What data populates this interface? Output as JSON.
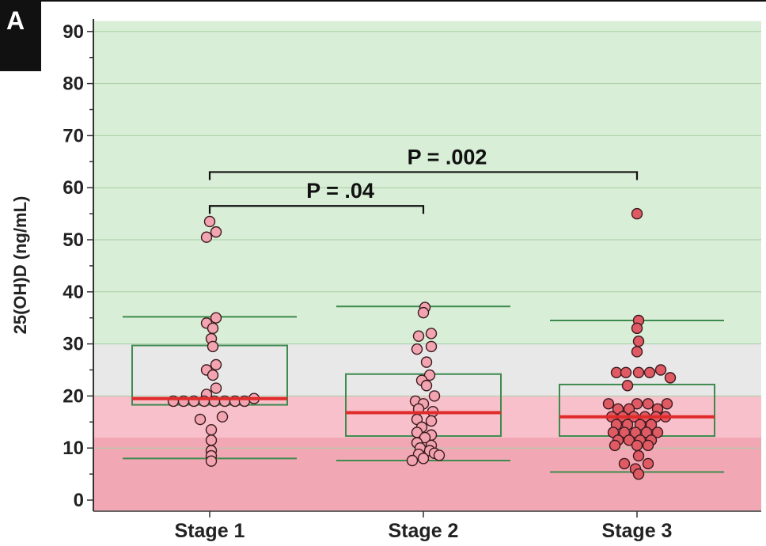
{
  "panel_label": "A",
  "chart_data": {
    "type": "box-scatter",
    "title": "",
    "xlabel": "",
    "ylabel": "25(OH)D (ng/mL)",
    "ylim": [
      -2,
      92
    ],
    "yticks": [
      0,
      10,
      20,
      30,
      40,
      50,
      60,
      70,
      80,
      90
    ],
    "categories": [
      "Stage 1",
      "Stage 2",
      "Stage 3"
    ],
    "background_bands": [
      {
        "from": -2,
        "to": 12,
        "color": "#f2a8b4"
      },
      {
        "from": 12,
        "to": 20,
        "color": "#f7c0ca"
      },
      {
        "from": 20,
        "to": 30,
        "color": "#e8e8e8"
      },
      {
        "from": 30,
        "to": 92,
        "color": "#d8eed6"
      }
    ],
    "series": [
      {
        "category": "Stage 1",
        "marker_color": "#f2a4b0",
        "median": 19.5,
        "q1": 18.3,
        "q3": 29.7,
        "whisker_low": 8,
        "whisker_high": 35.2,
        "points": [
          {
            "v": 53.5,
            "dx": 0
          },
          {
            "v": 51.5,
            "dx": 8
          },
          {
            "v": 50.5,
            "dx": -4
          },
          {
            "v": 35,
            "dx": 8
          },
          {
            "v": 34,
            "dx": -4
          },
          {
            "v": 33,
            "dx": 4
          },
          {
            "v": 31,
            "dx": 2
          },
          {
            "v": 29.5,
            "dx": 4
          },
          {
            "v": 26,
            "dx": 8
          },
          {
            "v": 25,
            "dx": -4
          },
          {
            "v": 24,
            "dx": 4
          },
          {
            "v": 21.5,
            "dx": 8
          },
          {
            "v": 20.3,
            "dx": -4
          },
          {
            "v": 19,
            "dx": -46
          },
          {
            "v": 19,
            "dx": -33
          },
          {
            "v": 19,
            "dx": -20
          },
          {
            "v": 19,
            "dx": -7
          },
          {
            "v": 19,
            "dx": 6
          },
          {
            "v": 19,
            "dx": 19
          },
          {
            "v": 19,
            "dx": 32
          },
          {
            "v": 19,
            "dx": 44
          },
          {
            "v": 19.5,
            "dx": 56
          },
          {
            "v": 16,
            "dx": 16
          },
          {
            "v": 15.5,
            "dx": -12
          },
          {
            "v": 13.5,
            "dx": 2
          },
          {
            "v": 11.5,
            "dx": 2
          },
          {
            "v": 9.5,
            "dx": 2
          },
          {
            "v": 8.5,
            "dx": 2
          },
          {
            "v": 7.5,
            "dx": 2
          }
        ]
      },
      {
        "category": "Stage 2",
        "marker_color": "#f2a4b0",
        "median": 16.8,
        "q1": 12.3,
        "q3": 24.2,
        "whisker_low": 7.6,
        "whisker_high": 37.2,
        "points": [
          {
            "v": 37,
            "dx": 2
          },
          {
            "v": 36,
            "dx": 0
          },
          {
            "v": 32,
            "dx": 10
          },
          {
            "v": 31.5,
            "dx": -6
          },
          {
            "v": 29.5,
            "dx": 10
          },
          {
            "v": 29,
            "dx": -8
          },
          {
            "v": 26.5,
            "dx": 4
          },
          {
            "v": 24,
            "dx": 8
          },
          {
            "v": 23,
            "dx": -2
          },
          {
            "v": 22,
            "dx": 4
          },
          {
            "v": 20,
            "dx": 14
          },
          {
            "v": 19,
            "dx": -10
          },
          {
            "v": 18.5,
            "dx": 0
          },
          {
            "v": 17.5,
            "dx": -6
          },
          {
            "v": 17,
            "dx": 12
          },
          {
            "v": 15.5,
            "dx": -8
          },
          {
            "v": 15.2,
            "dx": 10
          },
          {
            "v": 14,
            "dx": -2
          },
          {
            "v": 13,
            "dx": -8
          },
          {
            "v": 12.5,
            "dx": 10
          },
          {
            "v": 12,
            "dx": 2
          },
          {
            "v": 11,
            "dx": -8
          },
          {
            "v": 10.5,
            "dx": 10
          },
          {
            "v": 10,
            "dx": -4
          },
          {
            "v": 9.5,
            "dx": 8
          },
          {
            "v": 9,
            "dx": 14
          },
          {
            "v": 8.8,
            "dx": -6
          },
          {
            "v": 8.6,
            "dx": 20
          },
          {
            "v": 8,
            "dx": 0
          },
          {
            "v": 7.6,
            "dx": -14
          }
        ]
      },
      {
        "category": "Stage 3",
        "marker_color": "#e05a64",
        "median": 16,
        "q1": 12.3,
        "q3": 22.2,
        "whisker_low": 5.4,
        "whisker_high": 34.5,
        "points": [
          {
            "v": 55,
            "dx": 0
          },
          {
            "v": 34.5,
            "dx": 2
          },
          {
            "v": 33,
            "dx": 0
          },
          {
            "v": 30.5,
            "dx": 2
          },
          {
            "v": 28.5,
            "dx": 0
          },
          {
            "v": 25,
            "dx": 30
          },
          {
            "v": 24.5,
            "dx": -26
          },
          {
            "v": 24.5,
            "dx": -14
          },
          {
            "v": 24.5,
            "dx": 2
          },
          {
            "v": 24.5,
            "dx": 16
          },
          {
            "v": 23.5,
            "dx": 42
          },
          {
            "v": 22,
            "dx": -12
          },
          {
            "v": 18.5,
            "dx": -36
          },
          {
            "v": 18.5,
            "dx": 0
          },
          {
            "v": 18.5,
            "dx": 14
          },
          {
            "v": 18.5,
            "dx": 38
          },
          {
            "v": 17.5,
            "dx": -24
          },
          {
            "v": 17.5,
            "dx": -10
          },
          {
            "v": 17.5,
            "dx": 26
          },
          {
            "v": 16,
            "dx": -32
          },
          {
            "v": 16,
            "dx": -18
          },
          {
            "v": 16,
            "dx": -4
          },
          {
            "v": 16,
            "dx": 10
          },
          {
            "v": 16,
            "dx": 24
          },
          {
            "v": 16,
            "dx": 36
          },
          {
            "v": 14.5,
            "dx": -26
          },
          {
            "v": 14.5,
            "dx": -12
          },
          {
            "v": 14.5,
            "dx": 4
          },
          {
            "v": 14.5,
            "dx": 18
          },
          {
            "v": 13,
            "dx": -30
          },
          {
            "v": 13,
            "dx": -16
          },
          {
            "v": 13,
            "dx": -2
          },
          {
            "v": 13,
            "dx": 12
          },
          {
            "v": 13,
            "dx": 26
          },
          {
            "v": 11.5,
            "dx": -24
          },
          {
            "v": 11.5,
            "dx": -10
          },
          {
            "v": 11.5,
            "dx": 4
          },
          {
            "v": 11.5,
            "dx": 18
          },
          {
            "v": 10.5,
            "dx": -28
          },
          {
            "v": 10.5,
            "dx": 0
          },
          {
            "v": 10.5,
            "dx": 14
          },
          {
            "v": 8.5,
            "dx": 2
          },
          {
            "v": 7,
            "dx": -16
          },
          {
            "v": 7,
            "dx": 14
          },
          {
            "v": 6,
            "dx": -2
          },
          {
            "v": 5,
            "dx": 2
          }
        ]
      }
    ],
    "annotations": [
      {
        "text": "P = .04",
        "from": "Stage 1",
        "to": "Stage 2",
        "level": 56.5
      },
      {
        "text": "P = .002",
        "from": "Stage 1",
        "to": "Stage 3",
        "level": 63
      }
    ]
  }
}
